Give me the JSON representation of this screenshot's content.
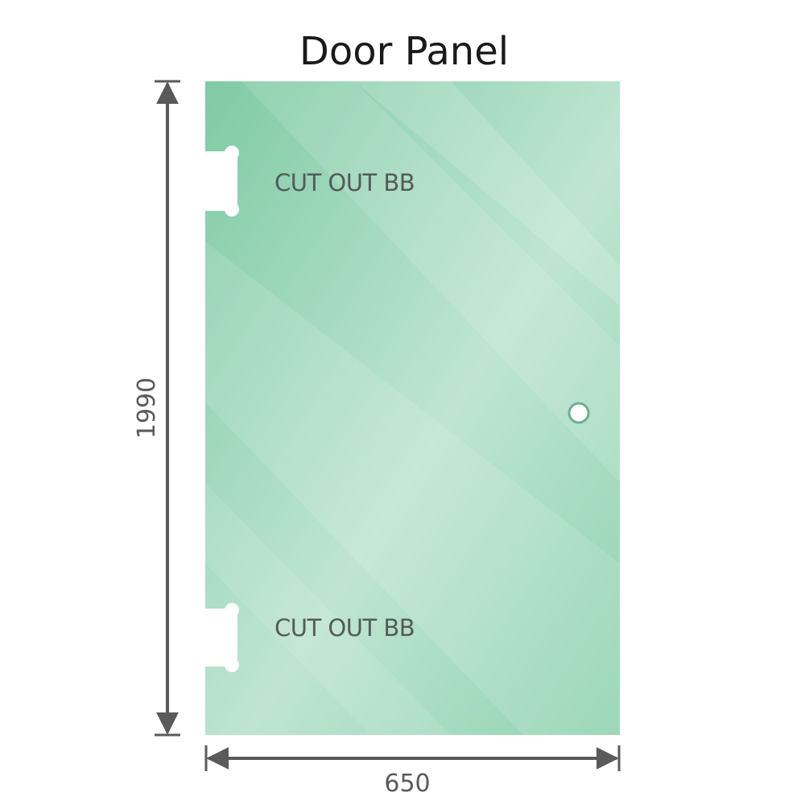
{
  "title": "Door Panel",
  "panel": {
    "color": "#8fd2b0",
    "cutout_top_label": "CUT OUT BB",
    "cutout_bottom_label": "CUT OUT BB",
    "handle_hole": "hole"
  },
  "dimensions": {
    "height": "1990",
    "width": "650",
    "line_color": "#5a5a5a"
  }
}
